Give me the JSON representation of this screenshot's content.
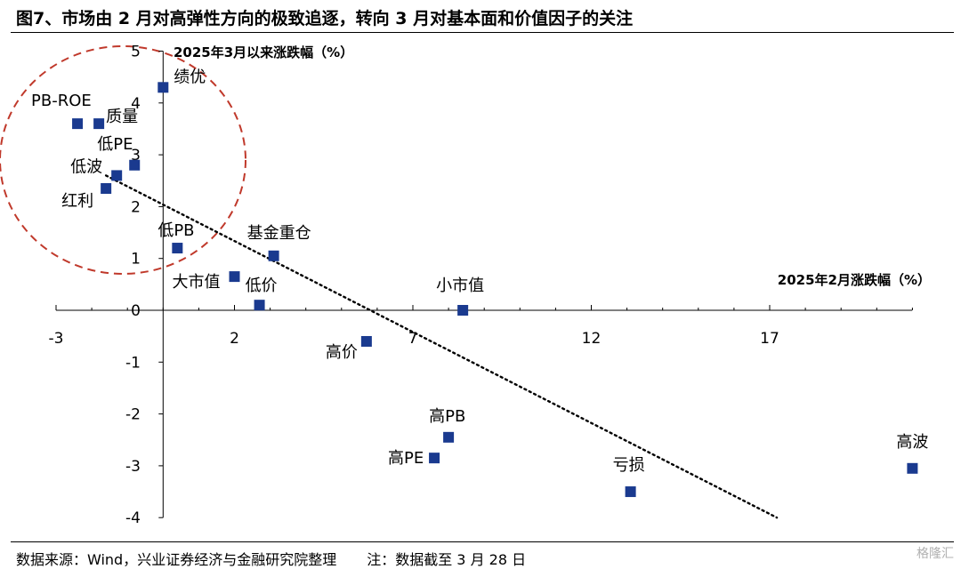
{
  "title": "图7、市场由 2 月对高弹性方向的极致追逐，转向 3 月对基本面和价值因子的关注",
  "source": "数据来源：Wind，兴业证券经济与金融研究院整理",
  "note": "注：数据截至 3 月 28 日",
  "watermark": "格隆汇",
  "colors": {
    "marker": "#1a3a8f",
    "circle": "#c0392b",
    "trend": "#000000"
  },
  "chart_data": {
    "type": "scatter",
    "xlabel": "2025年2月涨跌幅（%）",
    "ylabel": "2025年3月以来涨跌幅（%）",
    "xlim": [
      -3,
      21
    ],
    "ylim": [
      -4,
      5
    ],
    "xticks": [
      -3,
      2,
      7,
      12,
      17
    ],
    "yticks": [
      -4,
      -3,
      -2,
      -1,
      0,
      1,
      2,
      3,
      4,
      5
    ],
    "trendline": {
      "style": "dotted",
      "from": [
        -1.6,
        2.6
      ],
      "to": [
        17.2,
        -4.0
      ]
    },
    "highlight": {
      "shape": "dashed-circle"
    },
    "points": [
      {
        "label": "绩优",
        "x": 0.0,
        "y": 4.3
      },
      {
        "label": "PB-ROE",
        "x": -2.4,
        "y": 3.6
      },
      {
        "label": "质量",
        "x": -1.8,
        "y": 3.6
      },
      {
        "label": "低PE",
        "x": -0.8,
        "y": 2.8
      },
      {
        "label": "低波",
        "x": -1.3,
        "y": 2.6
      },
      {
        "label": "红利",
        "x": -1.6,
        "y": 2.35
      },
      {
        "label": "低PB",
        "x": 0.4,
        "y": 1.2
      },
      {
        "label": "基金重仓",
        "x": 3.1,
        "y": 1.05
      },
      {
        "label": "大市值",
        "x": 2.0,
        "y": 0.65
      },
      {
        "label": "低价",
        "x": 2.7,
        "y": 0.1
      },
      {
        "label": "小市值",
        "x": 8.4,
        "y": 0.0
      },
      {
        "label": "高价",
        "x": 5.7,
        "y": -0.6
      },
      {
        "label": "高PB",
        "x": 8.0,
        "y": -2.45
      },
      {
        "label": "高PE",
        "x": 7.6,
        "y": -2.85
      },
      {
        "label": "亏损",
        "x": 13.1,
        "y": -3.5
      },
      {
        "label": "高波",
        "x": 21.0,
        "y": -3.05
      }
    ]
  }
}
